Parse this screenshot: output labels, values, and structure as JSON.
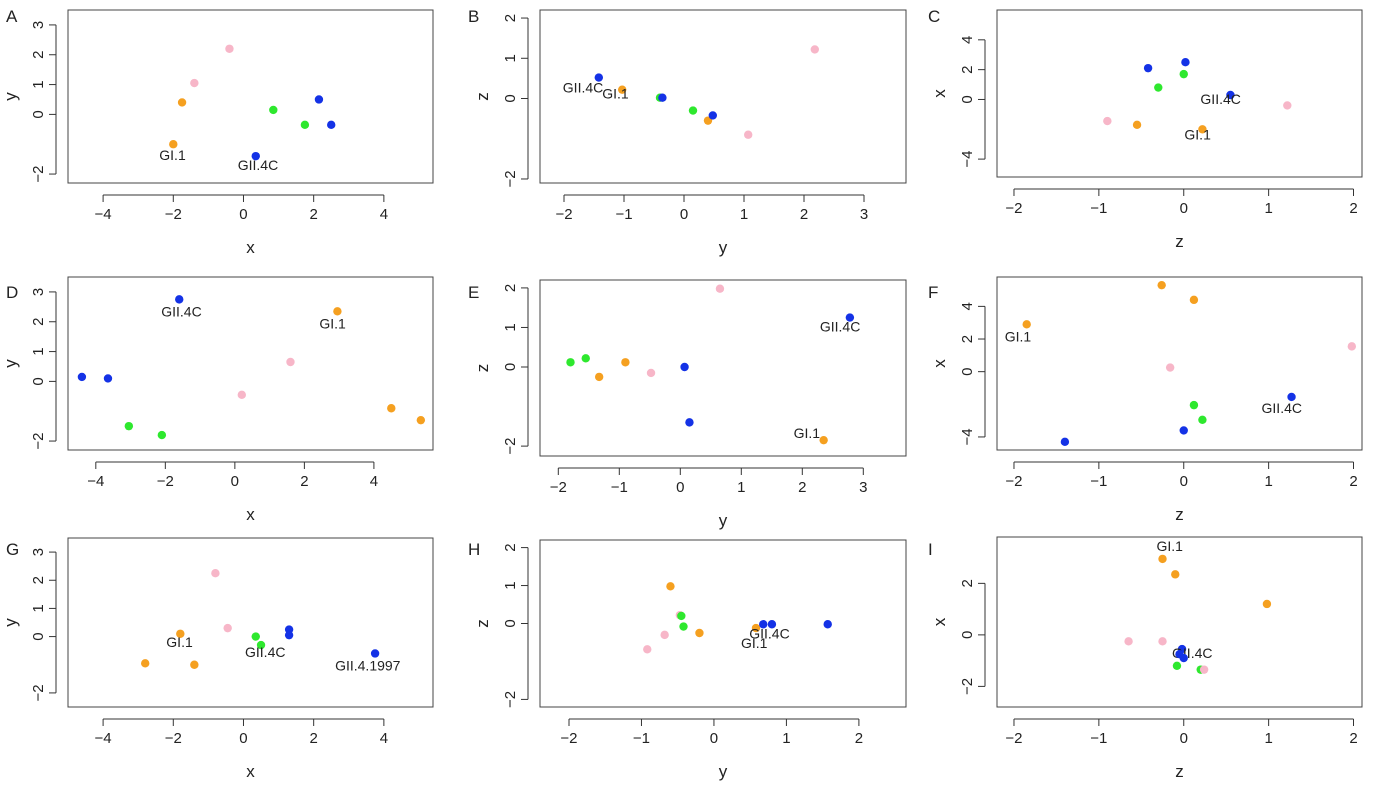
{
  "colors": {
    "blue": "#1432e6",
    "green": "#2ee82e",
    "orange": "#f5a020",
    "pink": "#f7b6c8"
  },
  "chart_data": [
    {
      "type": "scatter",
      "panel": "A",
      "xlabel": "x",
      "ylabel": "y",
      "xlim": [
        -5,
        5.4
      ],
      "ylim": [
        -2.3,
        3.5
      ],
      "xticks": [
        -4,
        -2,
        0,
        2,
        4
      ],
      "yticks": [
        -2,
        0,
        1,
        2,
        3
      ],
      "points": [
        {
          "x": -0.4,
          "y": 2.2,
          "color": "pink"
        },
        {
          "x": -1.4,
          "y": 1.05,
          "color": "pink"
        },
        {
          "x": -1.75,
          "y": 0.4,
          "color": "orange"
        },
        {
          "x": -2.0,
          "y": -1.0,
          "color": "orange",
          "label": "GI.1"
        },
        {
          "x": 0.35,
          "y": -1.4,
          "color": "blue",
          "label": "GII.4C"
        },
        {
          "x": 0.85,
          "y": 0.15,
          "color": "green"
        },
        {
          "x": 1.75,
          "y": -0.35,
          "color": "green"
        },
        {
          "x": 2.15,
          "y": 0.5,
          "color": "blue"
        },
        {
          "x": 2.5,
          "y": -0.35,
          "color": "blue"
        }
      ]
    },
    {
      "type": "scatter",
      "panel": "B",
      "xlabel": "y",
      "ylabel": "z",
      "xlim": [
        -2.4,
        3.7
      ],
      "ylim": [
        -2.1,
        2.2
      ],
      "xticks": [
        -2,
        -1,
        0,
        1,
        2,
        3
      ],
      "yticks": [
        -2,
        0,
        1,
        2
      ],
      "points": [
        {
          "x": -1.42,
          "y": 0.52,
          "color": "blue",
          "label": "GII.4C"
        },
        {
          "x": -1.03,
          "y": 0.22,
          "color": "orange",
          "label": "GI.1"
        },
        {
          "x": -0.4,
          "y": 0.02,
          "color": "green"
        },
        {
          "x": -0.36,
          "y": 0.02,
          "color": "blue"
        },
        {
          "x": 0.15,
          "y": -0.3,
          "color": "green"
        },
        {
          "x": 0.4,
          "y": -0.55,
          "color": "orange"
        },
        {
          "x": 0.48,
          "y": -0.42,
          "color": "blue"
        },
        {
          "x": 1.07,
          "y": -0.9,
          "color": "pink"
        },
        {
          "x": 2.18,
          "y": 1.22,
          "color": "pink"
        }
      ]
    },
    {
      "type": "scatter",
      "panel": "C",
      "xlabel": "z",
      "ylabel": "x",
      "xlim": [
        -2.2,
        2.1
      ],
      "ylim": [
        -5.2,
        6
      ],
      "xticks": [
        -2,
        -1,
        0,
        1,
        2
      ],
      "yticks": [
        -4,
        0,
        2,
        4
      ],
      "points": [
        {
          "x": -0.42,
          "y": 2.1,
          "color": "blue"
        },
        {
          "x": 0.02,
          "y": 2.5,
          "color": "blue"
        },
        {
          "x": 0.0,
          "y": 1.7,
          "color": "green"
        },
        {
          "x": -0.3,
          "y": 0.8,
          "color": "green"
        },
        {
          "x": 0.55,
          "y": 0.3,
          "color": "blue",
          "label": "GII.4C"
        },
        {
          "x": 1.22,
          "y": -0.4,
          "color": "pink"
        },
        {
          "x": -0.9,
          "y": -1.45,
          "color": "pink"
        },
        {
          "x": -0.55,
          "y": -1.7,
          "color": "orange"
        },
        {
          "x": 0.22,
          "y": -2.0,
          "color": "orange",
          "label": "GI.1"
        }
      ]
    },
    {
      "type": "scatter",
      "panel": "D",
      "xlabel": "x",
      "ylabel": "y",
      "xlim": [
        -4.8,
        5.7
      ],
      "ylim": [
        -2.3,
        3.5
      ],
      "xticks": [
        -4,
        -2,
        0,
        2,
        4
      ],
      "yticks": [
        -2,
        0,
        1,
        2,
        3
      ],
      "points": [
        {
          "x": -1.6,
          "y": 2.75,
          "color": "blue",
          "label": "GII.4C"
        },
        {
          "x": 2.95,
          "y": 2.35,
          "color": "orange",
          "label": "GI.1"
        },
        {
          "x": 1.6,
          "y": 0.65,
          "color": "pink"
        },
        {
          "x": 0.2,
          "y": -0.45,
          "color": "pink"
        },
        {
          "x": -4.4,
          "y": 0.15,
          "color": "blue"
        },
        {
          "x": -3.65,
          "y": 0.1,
          "color": "blue"
        },
        {
          "x": -3.05,
          "y": -1.5,
          "color": "green"
        },
        {
          "x": -2.1,
          "y": -1.8,
          "color": "green"
        },
        {
          "x": 4.5,
          "y": -0.9,
          "color": "orange"
        },
        {
          "x": 5.35,
          "y": -1.3,
          "color": "orange"
        }
      ]
    },
    {
      "type": "scatter",
      "panel": "E",
      "xlabel": "y",
      "ylabel": "z",
      "xlim": [
        -2.3,
        3.7
      ],
      "ylim": [
        -2.25,
        2.2
      ],
      "xticks": [
        -2,
        -1,
        0,
        1,
        2,
        3
      ],
      "yticks": [
        -2,
        0,
        1,
        2
      ],
      "points": [
        {
          "x": 0.65,
          "y": 1.98,
          "color": "pink"
        },
        {
          "x": 2.78,
          "y": 1.25,
          "color": "blue",
          "label": "GII.4C"
        },
        {
          "x": -1.8,
          "y": 0.12,
          "color": "green"
        },
        {
          "x": -1.55,
          "y": 0.22,
          "color": "green"
        },
        {
          "x": -1.33,
          "y": -0.25,
          "color": "orange"
        },
        {
          "x": -0.9,
          "y": 0.12,
          "color": "orange"
        },
        {
          "x": -0.48,
          "y": -0.15,
          "color": "pink"
        },
        {
          "x": 0.07,
          "y": 0.0,
          "color": "blue"
        },
        {
          "x": 0.15,
          "y": -1.4,
          "color": "blue"
        },
        {
          "x": 2.35,
          "y": -1.85,
          "color": "orange",
          "label": "GI.1"
        }
      ]
    },
    {
      "type": "scatter",
      "panel": "F",
      "xlabel": "z",
      "ylabel": "x",
      "xlim": [
        -2.2,
        2.1
      ],
      "ylim": [
        -4.8,
        5.8
      ],
      "xticks": [
        -2,
        -1,
        0,
        1,
        2
      ],
      "yticks": [
        -4,
        0,
        2,
        4
      ],
      "points": [
        {
          "x": -1.85,
          "y": 2.9,
          "color": "orange",
          "label": "GI.1"
        },
        {
          "x": -0.26,
          "y": 5.3,
          "color": "orange"
        },
        {
          "x": 0.12,
          "y": 4.4,
          "color": "orange"
        },
        {
          "x": -0.16,
          "y": 0.25,
          "color": "pink"
        },
        {
          "x": 1.98,
          "y": 1.55,
          "color": "pink"
        },
        {
          "x": 1.27,
          "y": -1.55,
          "color": "blue",
          "label": "GII.4C"
        },
        {
          "x": 0.12,
          "y": -2.05,
          "color": "green"
        },
        {
          "x": 0.22,
          "y": -2.95,
          "color": "green"
        },
        {
          "x": 0.0,
          "y": -3.6,
          "color": "blue"
        },
        {
          "x": -1.4,
          "y": -4.3,
          "color": "blue"
        }
      ]
    },
    {
      "type": "scatter",
      "panel": "G",
      "xlabel": "x",
      "ylabel": "y",
      "xlim": [
        -5,
        5.4
      ],
      "ylim": [
        -2.5,
        3.5
      ],
      "xticks": [
        -4,
        -2,
        0,
        2,
        4
      ],
      "yticks": [
        -2,
        0,
        1,
        2,
        3
      ],
      "points": [
        {
          "x": -0.8,
          "y": 2.25,
          "color": "pink"
        },
        {
          "x": -0.45,
          "y": 0.3,
          "color": "pink"
        },
        {
          "x": -1.8,
          "y": 0.1,
          "color": "orange",
          "label": "GI.1"
        },
        {
          "x": -2.8,
          "y": -0.95,
          "color": "orange"
        },
        {
          "x": -1.4,
          "y": -1.0,
          "color": "orange"
        },
        {
          "x": 0.35,
          "y": 0.0,
          "color": "green"
        },
        {
          "x": 0.5,
          "y": -0.3,
          "color": "green",
          "label": "GII.4C"
        },
        {
          "x": 1.3,
          "y": 0.25,
          "color": "blue"
        },
        {
          "x": 1.3,
          "y": 0.05,
          "color": "blue"
        },
        {
          "x": 3.75,
          "y": -0.6,
          "color": "blue",
          "label": "GII.4.1997"
        }
      ]
    },
    {
      "type": "scatter",
      "panel": "H",
      "xlabel": "y",
      "ylabel": "z",
      "xlim": [
        -2.4,
        2.65
      ],
      "ylim": [
        -2.2,
        2.2
      ],
      "xticks": [
        -2,
        -1,
        0,
        1,
        2
      ],
      "yticks": [
        -2,
        0,
        1,
        2
      ],
      "points": [
        {
          "x": -0.6,
          "y": 0.98,
          "color": "orange"
        },
        {
          "x": -0.47,
          "y": 0.22,
          "color": "pink"
        },
        {
          "x": -0.45,
          "y": 0.2,
          "color": "green"
        },
        {
          "x": -0.42,
          "y": -0.08,
          "color": "green"
        },
        {
          "x": -0.68,
          "y": -0.3,
          "color": "pink"
        },
        {
          "x": -0.92,
          "y": -0.68,
          "color": "pink"
        },
        {
          "x": -0.2,
          "y": -0.25,
          "color": "orange"
        },
        {
          "x": 0.58,
          "y": -0.12,
          "color": "orange",
          "label": "GI.1"
        },
        {
          "x": 0.68,
          "y": -0.02,
          "color": "blue",
          "label": "GII.4C"
        },
        {
          "x": 0.8,
          "y": -0.02,
          "color": "blue"
        },
        {
          "x": 1.57,
          "y": -0.02,
          "color": "blue"
        }
      ]
    },
    {
      "type": "scatter",
      "panel": "I",
      "xlabel": "z",
      "ylabel": "x",
      "xlim": [
        -2.2,
        2.1
      ],
      "ylim": [
        -2.8,
        3.8
      ],
      "xticks": [
        -2,
        -1,
        0,
        1,
        2
      ],
      "yticks": [
        -2,
        0,
        2
      ],
      "points": [
        {
          "x": -0.25,
          "y": 2.95,
          "color": "orange",
          "label": "GI.1"
        },
        {
          "x": -0.1,
          "y": 2.35,
          "color": "orange"
        },
        {
          "x": 0.98,
          "y": 1.2,
          "color": "orange"
        },
        {
          "x": -0.65,
          "y": -0.25,
          "color": "pink"
        },
        {
          "x": -0.25,
          "y": -0.25,
          "color": "pink"
        },
        {
          "x": -0.02,
          "y": -0.55,
          "color": "blue",
          "label": "GII.4C"
        },
        {
          "x": -0.05,
          "y": -0.75,
          "color": "blue"
        },
        {
          "x": 0.0,
          "y": -0.9,
          "color": "blue"
        },
        {
          "x": -0.08,
          "y": -1.2,
          "color": "green"
        },
        {
          "x": 0.2,
          "y": -1.35,
          "color": "green"
        },
        {
          "x": 0.24,
          "y": -1.35,
          "color": "pink"
        }
      ]
    }
  ]
}
